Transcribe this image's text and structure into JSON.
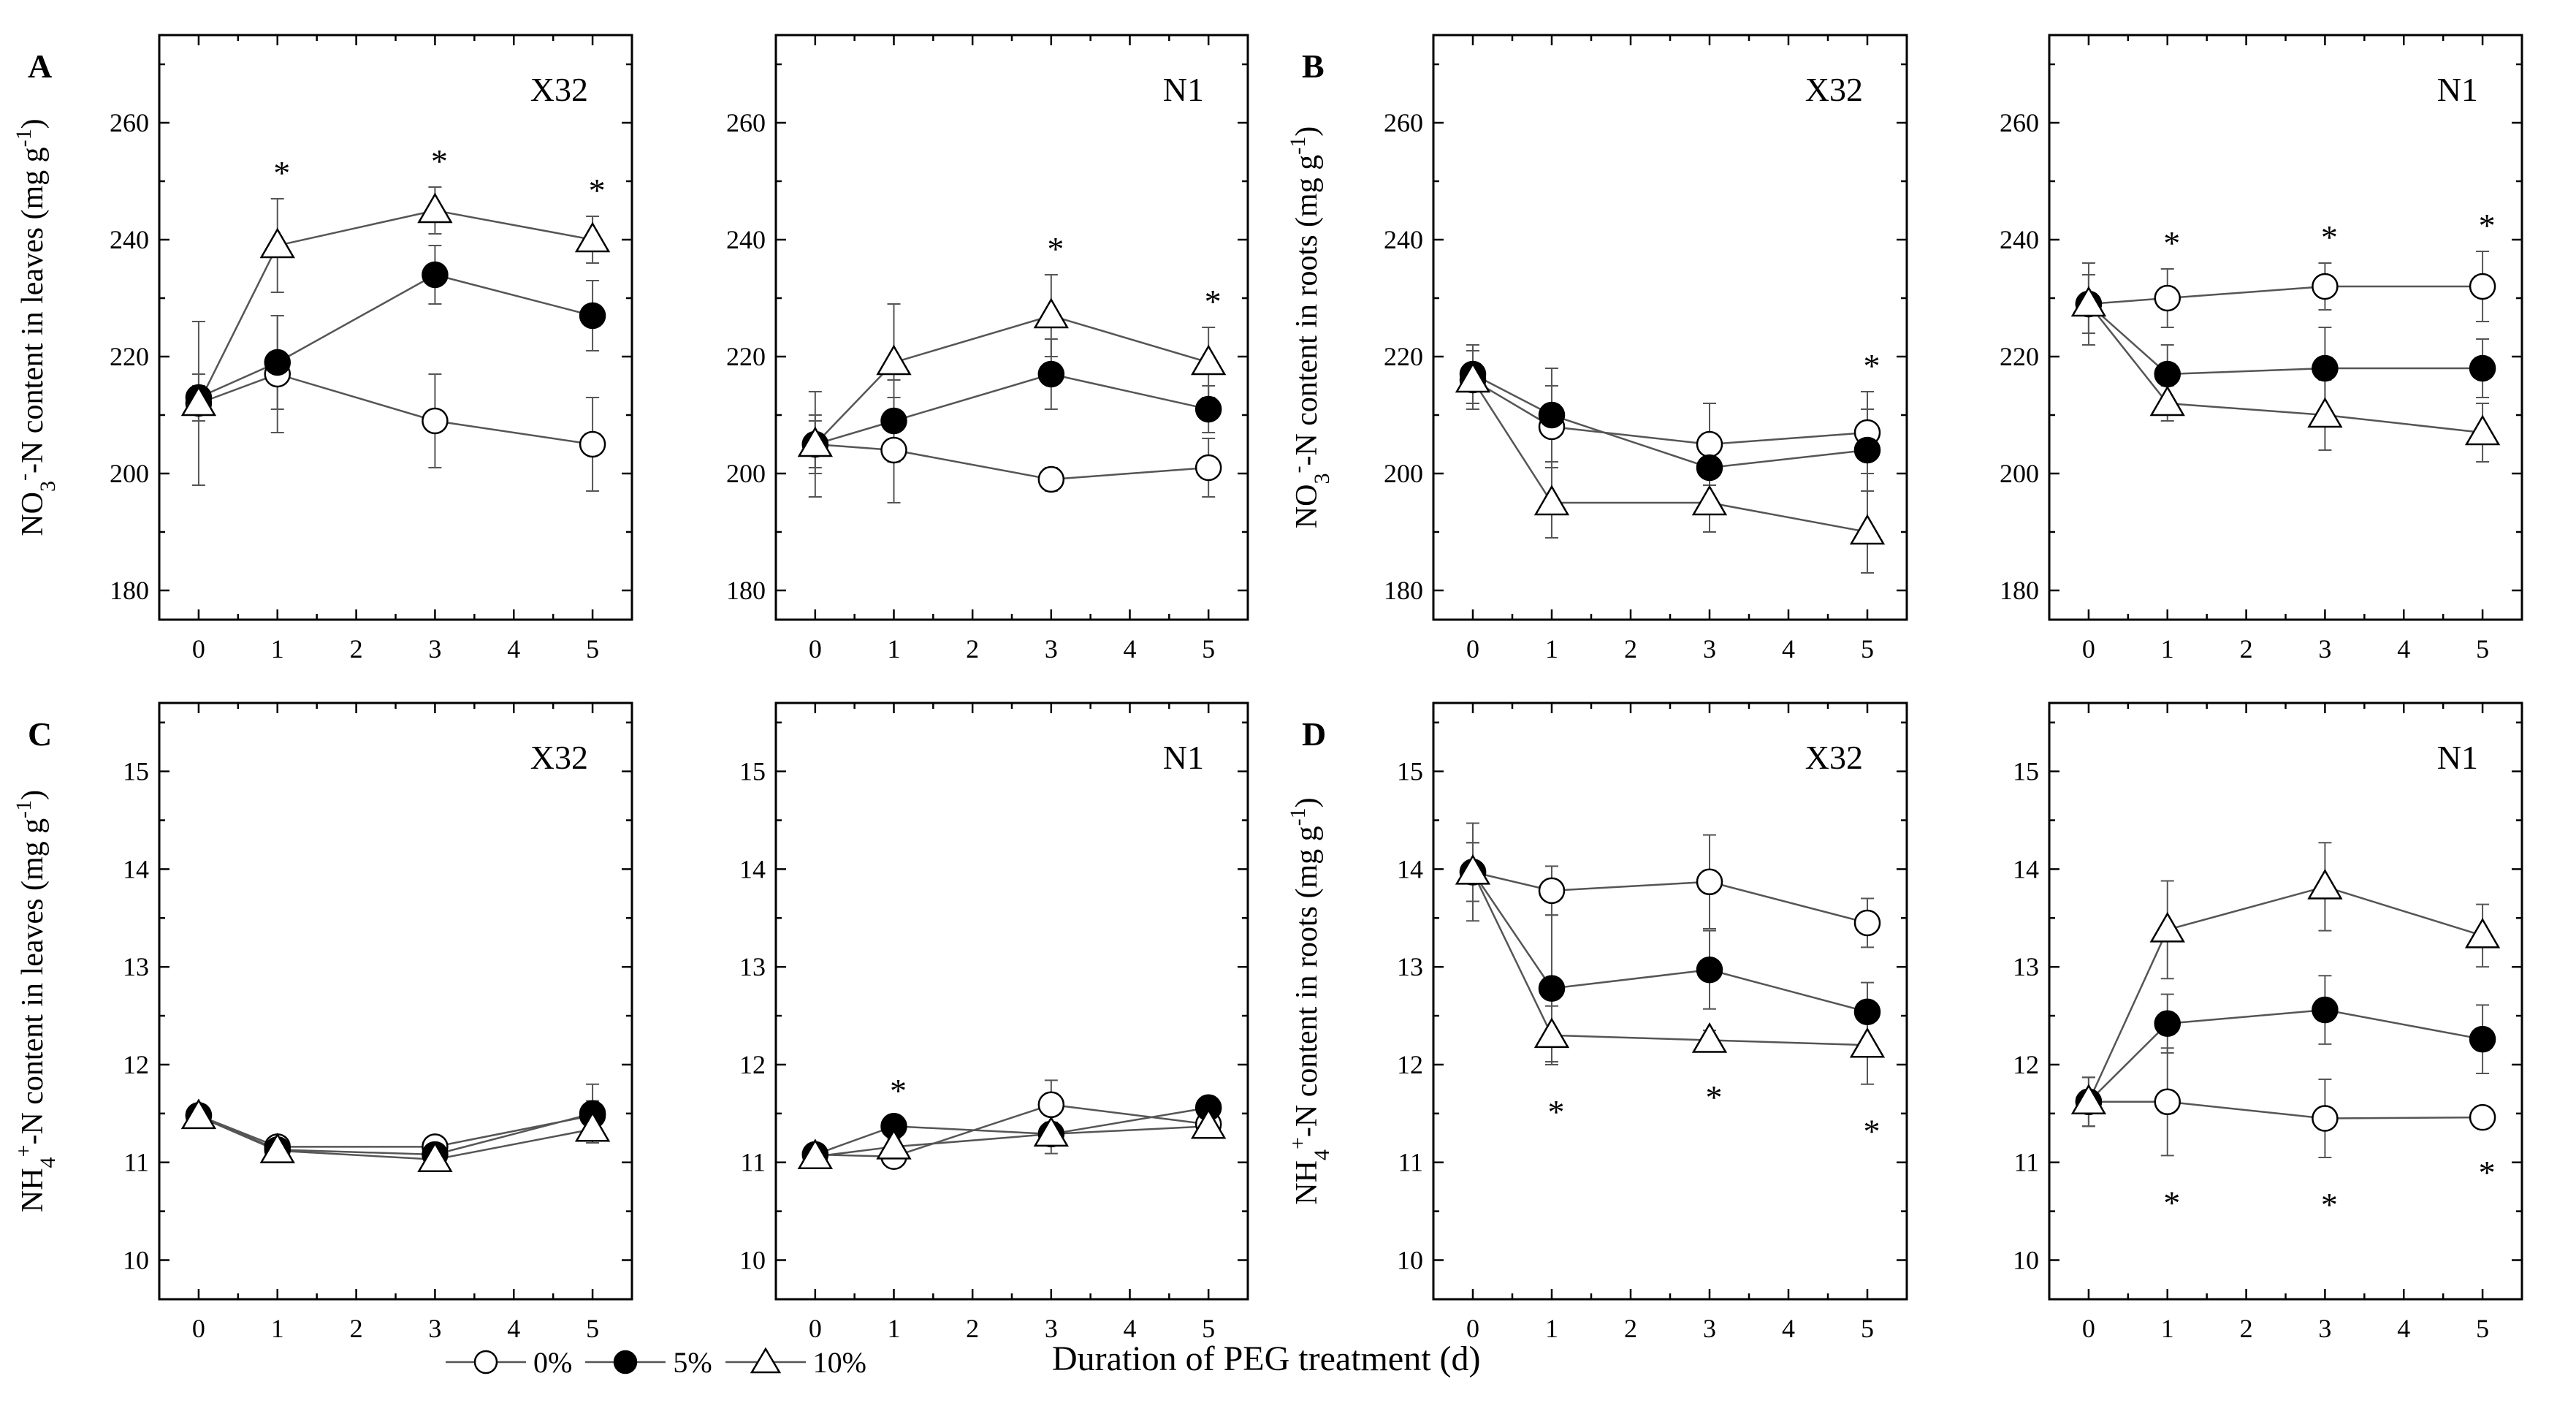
{
  "figure": {
    "x_axis_title": "Duration of PEG treatment (d)",
    "legend": [
      {
        "key": "p0",
        "label": "0%",
        "marker": "circle-open"
      },
      {
        "key": "p5",
        "label": "5%",
        "marker": "circle-filled"
      },
      {
        "key": "p10",
        "label": "10%",
        "marker": "triangle-open"
      }
    ],
    "colors": {
      "line": "#555555",
      "ink": "#000000",
      "fill_open": "#ffffff",
      "fill_filled": "#000000"
    }
  },
  "chart_data": [
    {
      "type": "line",
      "panel": "A",
      "title": "X32",
      "ylabel_html": "NO<tspan baseline-shift='sub' font-size='30'>3</tspan><tspan baseline-shift='super' font-size='30'>-</tspan>-N content in leaves (mg g<tspan baseline-shift='super' font-size='30'>-1</tspan>)",
      "xlim": [
        -0.5,
        5.5
      ],
      "ylim": [
        175,
        275
      ],
      "xticks": [
        0,
        1,
        2,
        3,
        4,
        5
      ],
      "yticks": [
        180,
        200,
        220,
        240,
        260
      ],
      "x": [
        0,
        1,
        3,
        5
      ],
      "series": [
        {
          "name": "0%",
          "values": [
            212,
            217,
            209,
            205
          ],
          "err": [
            14,
            10,
            8,
            8
          ]
        },
        {
          "name": "5%",
          "values": [
            213,
            219,
            234,
            227
          ],
          "err": [
            4,
            8,
            5,
            6
          ]
        },
        {
          "name": "10%",
          "values": [
            212,
            239,
            245,
            240
          ],
          "err": [
            3,
            8,
            4,
            4
          ]
        }
      ],
      "stars_x": [
        1,
        3,
        5
      ],
      "stars_pos": "above"
    },
    {
      "type": "line",
      "panel": "",
      "title": "N1",
      "ylabel_html": "",
      "xlim": [
        -0.5,
        5.5
      ],
      "ylim": [
        175,
        275
      ],
      "xticks": [
        0,
        1,
        2,
        3,
        4,
        5
      ],
      "yticks": [
        180,
        200,
        220,
        240,
        260
      ],
      "x": [
        0,
        1,
        3,
        5
      ],
      "series": [
        {
          "name": "0%",
          "values": [
            205,
            204,
            199,
            201
          ],
          "err": [
            9,
            9,
            2,
            5
          ]
        },
        {
          "name": "5%",
          "values": [
            205,
            209,
            217,
            211
          ],
          "err": [
            5,
            7,
            6,
            4
          ]
        },
        {
          "name": "10%",
          "values": [
            205,
            219,
            227,
            219
          ],
          "err": [
            4,
            10,
            7,
            6
          ]
        }
      ],
      "stars_x": [
        3,
        5
      ],
      "stars_pos": "above"
    },
    {
      "type": "line",
      "panel": "B",
      "title": "X32",
      "ylabel_html": "NO<tspan baseline-shift='sub' font-size='30'>3</tspan><tspan baseline-shift='super' font-size='30'>-</tspan>-N content in roots (mg g<tspan baseline-shift='super' font-size='30'>-1</tspan>)",
      "xlim": [
        -0.5,
        5.5
      ],
      "ylim": [
        175,
        275
      ],
      "xticks": [
        0,
        1,
        2,
        3,
        4,
        5
      ],
      "yticks": [
        180,
        200,
        220,
        240,
        260
      ],
      "x": [
        0,
        1,
        3,
        5
      ],
      "series": [
        {
          "name": "0%",
          "values": [
            216,
            208,
            205,
            207
          ],
          "err": [
            5,
            7,
            7,
            7
          ]
        },
        {
          "name": "5%",
          "values": [
            217,
            210,
            201,
            204
          ],
          "err": [
            5,
            8,
            5,
            7
          ]
        },
        {
          "name": "10%",
          "values": [
            216,
            195,
            195,
            190
          ],
          "err": [
            5,
            6,
            5,
            7
          ]
        }
      ],
      "stars_x": [
        5
      ],
      "stars_pos": "above"
    },
    {
      "type": "line",
      "panel": "",
      "title": "N1",
      "ylabel_html": "",
      "xlim": [
        -0.5,
        5.5
      ],
      "ylim": [
        175,
        275
      ],
      "xticks": [
        0,
        1,
        2,
        3,
        4,
        5
      ],
      "yticks": [
        180,
        200,
        220,
        240,
        260
      ],
      "x": [
        0,
        1,
        3,
        5
      ],
      "series": [
        {
          "name": "0%",
          "values": [
            229,
            230,
            232,
            232
          ],
          "err": [
            7,
            5,
            4,
            6
          ]
        },
        {
          "name": "5%",
          "values": [
            229,
            217,
            218,
            218
          ],
          "err": [
            5,
            5,
            7,
            5
          ]
        },
        {
          "name": "10%",
          "values": [
            229,
            212,
            210,
            207
          ],
          "err": [
            5,
            3,
            6,
            5
          ]
        }
      ],
      "stars_x": [
        1,
        3,
        5
      ],
      "stars_pos": "above"
    },
    {
      "type": "line",
      "panel": "C",
      "title": "X32",
      "ylabel_html": "NH<tspan baseline-shift='sub' font-size='30'>4</tspan><tspan baseline-shift='super' font-size='30'>+</tspan>-N content in leaves (mg g<tspan baseline-shift='super' font-size='30'>-1</tspan>)",
      "xlim": [
        -0.5,
        5.5
      ],
      "ylim": [
        9.6,
        15.7
      ],
      "xticks": [
        0,
        1,
        2,
        3,
        4,
        5
      ],
      "yticks": [
        10,
        11,
        12,
        13,
        14,
        15
      ],
      "x": [
        0,
        1,
        3,
        5
      ],
      "series": [
        {
          "name": "0%",
          "values": [
            11.48,
            11.16,
            11.16,
            11.48
          ],
          "err": [
            0.1,
            0.08,
            0.1,
            0.15
          ]
        },
        {
          "name": "5%",
          "values": [
            11.48,
            11.13,
            11.08,
            11.5
          ],
          "err": [
            0.1,
            0.06,
            0.1,
            0.3
          ]
        },
        {
          "name": "10%",
          "values": [
            11.47,
            11.12,
            11.03,
            11.34
          ],
          "err": [
            0.1,
            0.08,
            0.1,
            0.12
          ]
        }
      ],
      "stars_x": [],
      "stars_pos": "above"
    },
    {
      "type": "line",
      "panel": "",
      "title": "N1",
      "ylabel_html": "",
      "xlim": [
        -0.5,
        5.5
      ],
      "ylim": [
        9.6,
        15.7
      ],
      "xticks": [
        0,
        1,
        2,
        3,
        4,
        5
      ],
      "yticks": [
        10,
        11,
        12,
        13,
        14,
        15
      ],
      "x": [
        0,
        1,
        3,
        5
      ],
      "series": [
        {
          "name": "0%",
          "values": [
            11.08,
            11.06,
            11.59,
            11.39
          ],
          "err": [
            0.06,
            0.08,
            0.25,
            0.08
          ]
        },
        {
          "name": "5%",
          "values": [
            11.08,
            11.37,
            11.29,
            11.56
          ],
          "err": [
            0.06,
            0.1,
            0.12,
            0.1
          ]
        },
        {
          "name": "10%",
          "values": [
            11.06,
            11.16,
            11.29,
            11.37
          ],
          "err": [
            0.06,
            0.08,
            0.2,
            0.1
          ]
        }
      ],
      "stars_x": [
        1
      ],
      "stars_pos": "above"
    },
    {
      "type": "line",
      "panel": "D",
      "title": "X32",
      "ylabel_html": "NH<tspan baseline-shift='sub' font-size='30'>4</tspan><tspan baseline-shift='super' font-size='30'>+</tspan>-N content in roots (mg g<tspan baseline-shift='super' font-size='30'>-1</tspan>)",
      "xlim": [
        -0.5,
        5.5
      ],
      "ylim": [
        9.6,
        15.7
      ],
      "xticks": [
        0,
        1,
        2,
        3,
        4,
        5
      ],
      "yticks": [
        10,
        11,
        12,
        13,
        14,
        15
      ],
      "x": [
        0,
        1,
        3,
        5
      ],
      "series": [
        {
          "name": "0%",
          "values": [
            13.97,
            13.78,
            13.87,
            13.45
          ],
          "err": [
            0.5,
            0.25,
            0.48,
            0.25
          ]
        },
        {
          "name": "5%",
          "values": [
            13.97,
            12.78,
            12.97,
            12.54
          ],
          "err": [
            0.3,
            0.75,
            0.4,
            0.3
          ]
        },
        {
          "name": "10%",
          "values": [
            13.97,
            12.3,
            12.25,
            12.2
          ],
          "err": [
            0.3,
            0.3,
            0.1,
            0.4
          ]
        }
      ],
      "stars_x": [
        1,
        3,
        5
      ],
      "stars_pos": "below"
    },
    {
      "type": "line",
      "panel": "",
      "title": "N1",
      "ylabel_html": "",
      "xlim": [
        -0.5,
        5.5
      ],
      "ylim": [
        9.6,
        15.7
      ],
      "xticks": [
        0,
        1,
        2,
        3,
        4,
        5
      ],
      "yticks": [
        10,
        11,
        12,
        13,
        14,
        15
      ],
      "x": [
        0,
        1,
        3,
        5
      ],
      "series": [
        {
          "name": "0%",
          "values": [
            11.62,
            11.62,
            11.45,
            11.46
          ],
          "err": [
            0.25,
            0.55,
            0.4,
            0.08
          ]
        },
        {
          "name": "5%",
          "values": [
            11.62,
            12.42,
            12.56,
            12.26
          ],
          "err": [
            0.25,
            0.3,
            0.35,
            0.35
          ]
        },
        {
          "name": "10%",
          "values": [
            11.62,
            13.38,
            13.82,
            13.32
          ],
          "err": [
            0.25,
            0.5,
            0.45,
            0.32
          ]
        }
      ],
      "stars_x": [
        1,
        3,
        5
      ],
      "stars_pos": "below"
    }
  ]
}
